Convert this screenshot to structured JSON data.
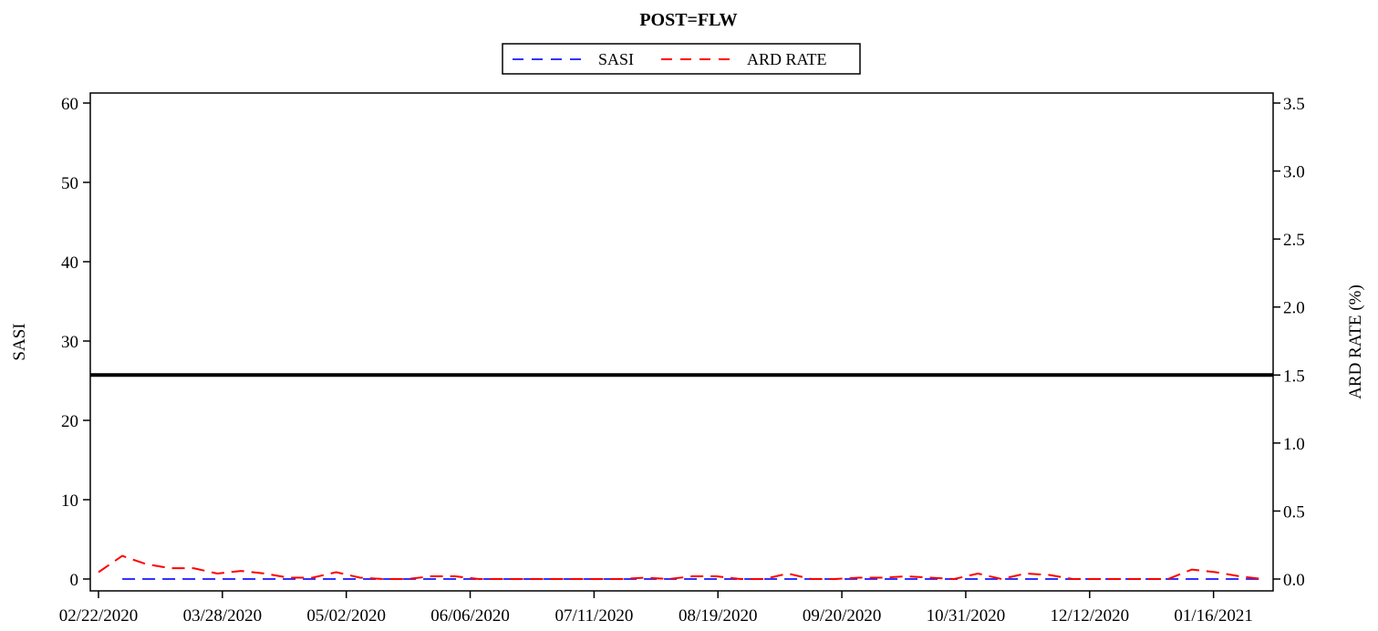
{
  "chart_data": {
    "type": "line",
    "title": "POST=FLW",
    "legend": {
      "position": "top-center",
      "entries": [
        {
          "name": "SASI",
          "color": "#3333ff",
          "style": "dashed"
        },
        {
          "name": "ARD RATE",
          "color": "#ff0000",
          "style": "dashed"
        }
      ]
    },
    "y_left": {
      "label": "SASI",
      "range": [
        0,
        60
      ],
      "ticks": [
        0,
        10,
        20,
        30,
        40,
        50,
        60
      ]
    },
    "y_right": {
      "label": "ARD RATE (%)",
      "range": [
        0,
        3.5
      ],
      "ticks": [
        "0.0",
        "0.5",
        "1.0",
        "1.5",
        "2.0",
        "2.5",
        "3.0",
        "3.5"
      ]
    },
    "x": {
      "ticks": [
        "02/22/2020",
        "03/28/2020",
        "05/02/2020",
        "06/06/2020",
        "07/11/2020",
        "08/19/2020",
        "09/20/2020",
        "10/31/2020",
        "12/12/2020",
        "01/16/2021"
      ]
    },
    "reference_line": {
      "axis": "right",
      "value": 1.5,
      "color": "#000000"
    },
    "grid": false,
    "series": [
      {
        "name": "SASI",
        "axis": "left",
        "color": "#3333ff",
        "style": "dashed",
        "values": [
          null,
          0,
          0,
          0,
          0,
          0,
          0,
          0,
          0,
          0,
          0,
          0,
          0,
          0,
          0,
          0,
          0,
          0,
          0,
          0,
          0,
          0,
          0,
          0,
          0,
          0,
          0,
          0,
          0,
          0,
          0,
          0,
          0,
          0,
          0,
          0,
          0,
          0,
          0,
          0,
          0,
          0,
          0,
          0,
          0,
          0,
          0,
          0,
          0,
          0
        ]
      },
      {
        "name": "ARD RATE",
        "axis": "right",
        "color": "#ff0000",
        "style": "dashed",
        "values": [
          0.05,
          0.17,
          0.11,
          0.08,
          0.08,
          0.04,
          0.06,
          0.04,
          0.01,
          0.01,
          0.05,
          0.01,
          0.0,
          0.0,
          0.02,
          0.02,
          0.0,
          0.0,
          0.0,
          0.0,
          0.0,
          0.0,
          0.0,
          0.01,
          0.0,
          0.02,
          0.02,
          0.0,
          0.0,
          0.04,
          0.0,
          0.0,
          0.01,
          0.01,
          0.02,
          0.01,
          0.0,
          0.04,
          0.0,
          0.04,
          0.03,
          0.0,
          0.0,
          0.0,
          0.0,
          0.0,
          0.07,
          0.05,
          0.02,
          0.0
        ]
      }
    ]
  }
}
